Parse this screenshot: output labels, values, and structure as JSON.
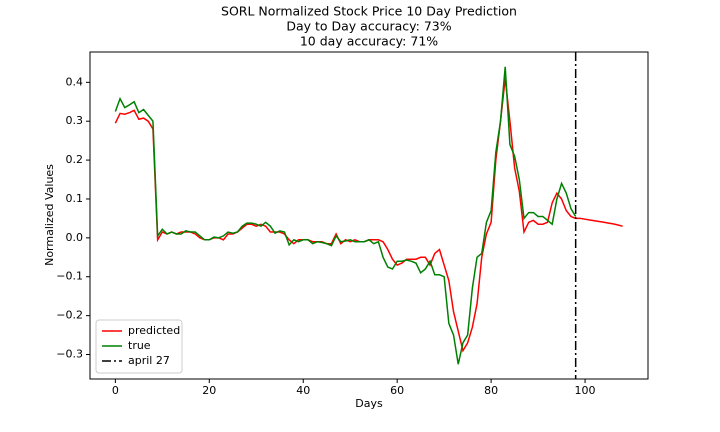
{
  "chart_data": {
    "type": "line",
    "title": "SORL Normalized Stock Price 10 Day Prediction",
    "subtitle": [
      "Day to Day accuracy: 73%",
      "10 day accuracy: 71%"
    ],
    "x_label": "Days",
    "y_label": "Normalized Values",
    "x": [
      0,
      1,
      2,
      3,
      4,
      5,
      6,
      7,
      8,
      9,
      10,
      11,
      12,
      13,
      14,
      15,
      16,
      17,
      18,
      19,
      20,
      21,
      22,
      23,
      24,
      25,
      26,
      27,
      28,
      29,
      30,
      31,
      32,
      33,
      34,
      35,
      36,
      37,
      38,
      39,
      40,
      41,
      42,
      43,
      44,
      45,
      46,
      47,
      48,
      49,
      50,
      51,
      52,
      53,
      54,
      55,
      56,
      57,
      58,
      59,
      60,
      61,
      62,
      63,
      64,
      65,
      66,
      67,
      68,
      69,
      70,
      71,
      72,
      73,
      74,
      75,
      76,
      77,
      78,
      79,
      80,
      81,
      82,
      83,
      84,
      85,
      86,
      87,
      88,
      89,
      90,
      91,
      92,
      93,
      94,
      95,
      96,
      97,
      98,
      99,
      100,
      101,
      102,
      103,
      104,
      105,
      106,
      107,
      108
    ],
    "series": [
      {
        "name": "predicted",
        "color": "#ff0000",
        "values": [
          0.295,
          0.32,
          0.318,
          0.322,
          0.328,
          0.305,
          0.308,
          0.3,
          0.28,
          -0.005,
          0.015,
          0.01,
          0.015,
          0.01,
          0.015,
          0.015,
          0.015,
          0.01,
          0.0,
          -0.005,
          -0.005,
          0.0,
          0.0,
          -0.005,
          0.01,
          0.01,
          0.015,
          0.025,
          0.035,
          0.035,
          0.03,
          0.035,
          0.03,
          0.015,
          0.015,
          0.015,
          0.01,
          -0.005,
          -0.015,
          -0.005,
          -0.005,
          -0.005,
          -0.01,
          -0.01,
          -0.01,
          -0.015,
          -0.015,
          0.01,
          -0.015,
          -0.005,
          -0.01,
          -0.005,
          -0.01,
          -0.01,
          -0.005,
          -0.005,
          -0.005,
          -0.01,
          -0.03,
          -0.055,
          -0.07,
          -0.065,
          -0.055,
          -0.055,
          -0.055,
          -0.05,
          -0.05,
          -0.07,
          -0.04,
          -0.03,
          -0.07,
          -0.11,
          -0.19,
          -0.24,
          -0.29,
          -0.27,
          -0.23,
          -0.17,
          -0.05,
          0.01,
          0.04,
          0.2,
          0.3,
          0.41,
          0.3,
          0.18,
          0.12,
          0.015,
          0.04,
          0.045,
          0.035,
          0.035,
          0.04,
          0.09,
          0.115,
          0.1,
          0.07,
          0.055,
          0.05,
          0.05,
          0.048,
          0.046,
          0.044,
          0.042,
          0.04,
          0.038,
          0.036,
          0.033,
          0.03
        ]
      },
      {
        "name": "true",
        "color": "#008000",
        "values": [
          0.325,
          0.358,
          0.335,
          0.342,
          0.35,
          0.322,
          0.33,
          0.315,
          0.3,
          0.005,
          0.022,
          0.01,
          0.015,
          0.01,
          0.01,
          0.018,
          0.015,
          0.015,
          0.005,
          -0.005,
          -0.005,
          0.002,
          0.0,
          0.005,
          0.015,
          0.012,
          0.015,
          0.03,
          0.038,
          0.038,
          0.035,
          0.03,
          0.04,
          0.03,
          0.012,
          0.018,
          0.015,
          -0.018,
          -0.005,
          -0.01,
          -0.005,
          -0.005,
          -0.015,
          -0.01,
          -0.012,
          -0.015,
          -0.02,
          0.005,
          -0.01,
          -0.008,
          -0.005,
          -0.01,
          -0.01,
          -0.01,
          -0.005,
          -0.015,
          -0.01,
          -0.05,
          -0.075,
          -0.08,
          -0.06,
          -0.06,
          -0.057,
          -0.06,
          -0.065,
          -0.09,
          -0.08,
          -0.06,
          -0.095,
          -0.095,
          -0.1,
          -0.22,
          -0.25,
          -0.325,
          -0.27,
          -0.25,
          -0.13,
          -0.05,
          -0.04,
          0.04,
          0.07,
          0.22,
          0.3,
          0.44,
          0.24,
          0.21,
          0.15,
          0.05,
          0.065,
          0.065,
          0.055,
          0.055,
          0.045,
          0.035,
          0.1,
          0.14,
          0.115,
          0.075,
          0.055,
          null,
          null,
          null,
          null,
          null,
          null,
          null,
          null,
          null,
          null
        ]
      }
    ],
    "vlines": [
      {
        "x": 98,
        "name": "april 27",
        "color": "#000000"
      }
    ],
    "xlim": [
      -5.4,
      113.4
    ],
    "xticks": [
      0,
      20,
      40,
      60,
      80,
      100
    ],
    "ylim": [
      -0.363,
      0.478
    ],
    "yticks": [
      {
        "value": -0.3,
        "label": "−0.3"
      },
      {
        "value": -0.2,
        "label": "−0.2"
      },
      {
        "value": -0.1,
        "label": "−0.1"
      },
      {
        "value": 0,
        "label": "0.0"
      },
      {
        "value": 0.1,
        "label": "0.1"
      },
      {
        "value": 0.2,
        "label": "0.2"
      },
      {
        "value": 0.3,
        "label": "0.3"
      },
      {
        "value": 0.4,
        "label": "0.4"
      }
    ],
    "grid": false,
    "legend": "lower left"
  }
}
